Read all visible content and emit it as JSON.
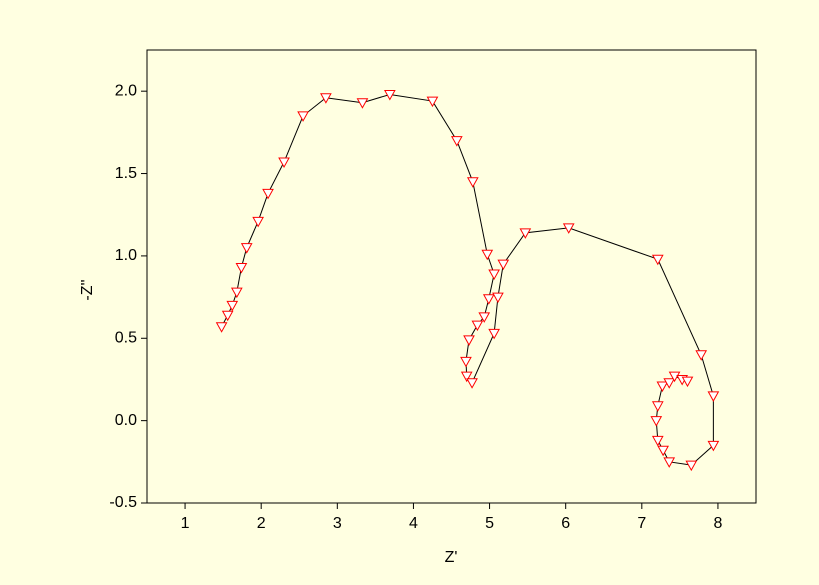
{
  "chart_data": {
    "type": "line",
    "x_label": "Z'",
    "y_label": "-Z''",
    "xlim": [
      0.5,
      8.5
    ],
    "ylim": [
      -0.5,
      2.25
    ],
    "xticks": [
      1,
      2,
      3,
      4,
      5,
      6,
      7,
      8
    ],
    "yticks": [
      -0.5,
      {
        "value": 0,
        "label": "0.0"
      },
      0.5,
      {
        "value": 1,
        "label": "1.0"
      },
      1.5,
      {
        "value": 2,
        "label": "2.0"
      }
    ],
    "series": [
      {
        "color": "#ff0000",
        "line_color": "#000000",
        "x": [
          1.48,
          1.56,
          1.62,
          1.68,
          1.74,
          1.81,
          1.96,
          2.09,
          2.3,
          2.55,
          2.85,
          3.33,
          3.69,
          4.25,
          4.57,
          4.78,
          4.97,
          5.06,
          4.99,
          4.93,
          4.84,
          4.73,
          4.69,
          4.7,
          4.77,
          5.06,
          5.11,
          5.18,
          5.47,
          6.04,
          7.21,
          7.78,
          7.94,
          7.94,
          7.65,
          7.36,
          7.28,
          7.21,
          7.19,
          7.21,
          7.27,
          7.36,
          7.43,
          7.53,
          7.6
        ],
        "values": [
          0.57,
          0.64,
          0.7,
          0.78,
          0.93,
          1.05,
          1.21,
          1.38,
          1.57,
          1.85,
          1.96,
          1.93,
          1.98,
          1.94,
          1.7,
          1.45,
          1.01,
          0.89,
          0.74,
          0.63,
          0.58,
          0.49,
          0.36,
          0.27,
          0.23,
          0.53,
          0.75,
          0.95,
          1.14,
          1.17,
          0.98,
          0.4,
          0.15,
          -0.15,
          -0.27,
          -0.25,
          -0.18,
          -0.12,
          0.0,
          0.09,
          0.21,
          0.23,
          0.27,
          0.25,
          0.24
        ]
      }
    ]
  }
}
